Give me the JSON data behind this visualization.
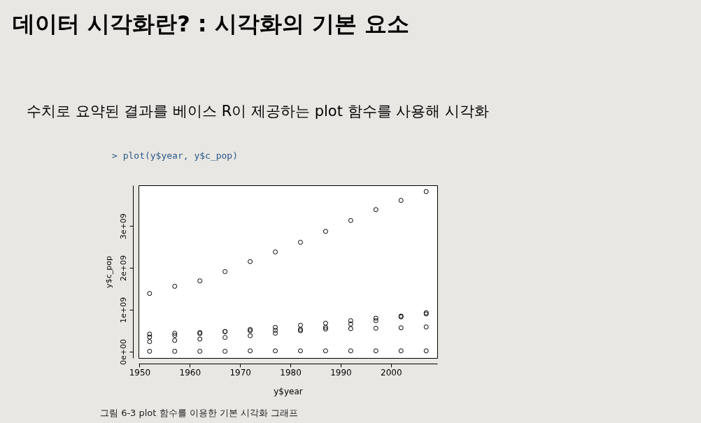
{
  "chart_data": {
    "type": "scatter",
    "title": "데이터 시각화란? : 시각화의 기본 요소",
    "subtitle": "수치로 요약된 결과를 베이스 R이 제공하는 plot 함수를 사용해 시각화",
    "annotations": [
      "> plot(y$year, y$c_pop)",
      "그림 6-3 plot 함수를 이용한 기본 시각화 그래프"
    ],
    "xlabel": "y$year",
    "ylabel": "y$c_pop",
    "x": [
      1952,
      1957,
      1962,
      1967,
      1972,
      1977,
      1982,
      1987,
      1992,
      1997,
      2002,
      2007
    ],
    "series": [
      {
        "color": "#000000",
        "values": [
          1390000000,
          1560000000,
          1690000000,
          1910000000,
          2150000000,
          2380000000,
          2610000000,
          2870000000,
          3130000000,
          3390000000,
          3610000000,
          3820000000
        ]
      },
      {
        "color": "#000000",
        "values": [
          350000000,
          390000000,
          430000000,
          480000000,
          530000000,
          580000000,
          630000000,
          680000000,
          740000000,
          800000000,
          850000000,
          900000000
        ]
      },
      {
        "color": "#000000",
        "values": [
          420000000,
          440000000,
          460000000,
          480000000,
          500000000,
          510000000,
          530000000,
          540000000,
          550000000,
          560000000,
          570000000,
          590000000
        ]
      },
      {
        "color": "#000000",
        "values": [
          240000000,
          270000000,
          300000000,
          340000000,
          380000000,
          440000000,
          500000000,
          580000000,
          660000000,
          740000000,
          830000000,
          930000000
        ]
      },
      {
        "color": "#000000",
        "values": [
          10000000,
          10000000,
          10000000,
          10000000,
          20000000,
          20000000,
          20000000,
          20000000,
          20000000,
          20000000,
          20000000,
          20000000
        ]
      }
    ],
    "xlim": [
      1949.8,
      2009.2
    ],
    "ylim": [
      -150000000,
      3970000000
    ],
    "xticks": [
      1950,
      1960,
      1970,
      1980,
      1990,
      2000
    ],
    "yticks": [
      {
        "value": 0,
        "label": "0e+00"
      },
      {
        "value": 1000000000,
        "label": "1e+09"
      },
      {
        "value": 2000000000,
        "label": "2e+09"
      },
      {
        "value": 3000000000,
        "label": "3e+09"
      }
    ],
    "grid": false,
    "legend": false,
    "marker": "circle"
  }
}
